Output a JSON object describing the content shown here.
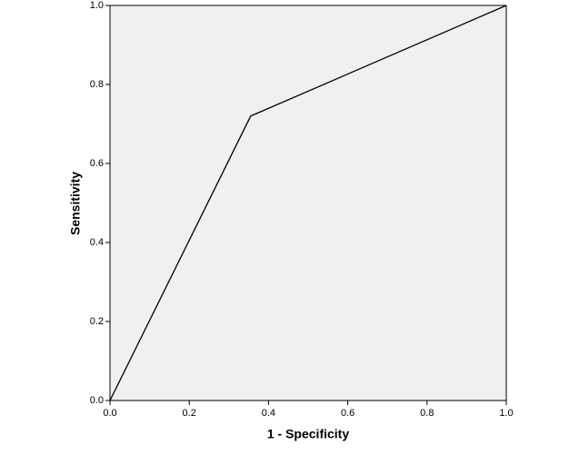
{
  "chart_data": {
    "type": "line",
    "x_label": "1 - Specificity",
    "y_label": "Sensitivity",
    "x": [
      0,
      0.355,
      1
    ],
    "values": [
      0,
      0.72,
      1
    ],
    "color": "#000000",
    "plot_background": "#f0f0f0",
    "xlim": [
      0,
      1
    ],
    "ylim": [
      0,
      1
    ],
    "xticks": [
      {
        "value": 0,
        "label": "0.0"
      },
      0.2,
      0.4,
      0.6,
      0.8,
      {
        "value": 1,
        "label": "1.0"
      }
    ],
    "yticks": [
      {
        "value": 0,
        "label": "0.0"
      },
      0.2,
      0.4,
      0.6,
      0.8,
      {
        "value": 1,
        "label": "1.0"
      }
    ]
  }
}
